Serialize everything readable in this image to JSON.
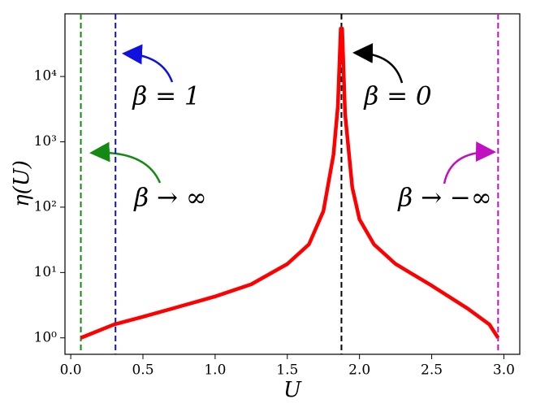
{
  "chart_data": {
    "type": "line",
    "xlabel": "U",
    "ylabel": "η(U)",
    "xlim": [
      -0.04,
      3.11
    ],
    "ylim": [
      0.56,
      91000
    ],
    "yscale": "log",
    "xticks": [
      {
        "value": 0,
        "label": "0.0"
      },
      {
        "value": 0.5,
        "label": "0.5"
      },
      {
        "value": 1,
        "label": "1.0"
      },
      {
        "value": 1.5,
        "label": "1.5"
      },
      {
        "value": 2,
        "label": "2.0"
      },
      {
        "value": 2.5,
        "label": "2.5"
      },
      {
        "value": 3,
        "label": "3.0"
      }
    ],
    "yticks": [
      {
        "value": 1,
        "label": "10⁰"
      },
      {
        "value": 10,
        "label": "10¹"
      },
      {
        "value": 100,
        "label": "10²"
      },
      {
        "value": 1000,
        "label": "10³"
      },
      {
        "value": 10000,
        "label": "10⁴"
      }
    ],
    "series": [
      {
        "color": "#ff0000",
        "x": [
          0.07,
          0.3,
          0.5,
          0.75,
          1.0,
          1.25,
          1.5,
          1.65,
          1.75,
          1.82,
          1.85,
          1.87,
          1.88,
          1.9,
          1.95,
          2.0,
          2.1,
          2.25,
          2.5,
          2.75,
          2.9,
          2.96
        ],
        "values": [
          1.0,
          1.6,
          2.1,
          3.0,
          4.3,
          6.6,
          13.5,
          27,
          87,
          640,
          3500,
          54000,
          54000,
          2700,
          200,
          65,
          27,
          13.5,
          6.3,
          2.8,
          1.6,
          1.0
        ]
      }
    ],
    "vlines": [
      {
        "x": 0.07,
        "color": "#138a13"
      },
      {
        "x": 0.31,
        "color": "#1010e0"
      },
      {
        "x": 1.875,
        "color": "#000000"
      },
      {
        "x": 2.96,
        "color": "#c010c0"
      }
    ],
    "annotations": [
      "β = 1",
      "β = 0",
      "β → ∞",
      "β → −∞"
    ]
  }
}
